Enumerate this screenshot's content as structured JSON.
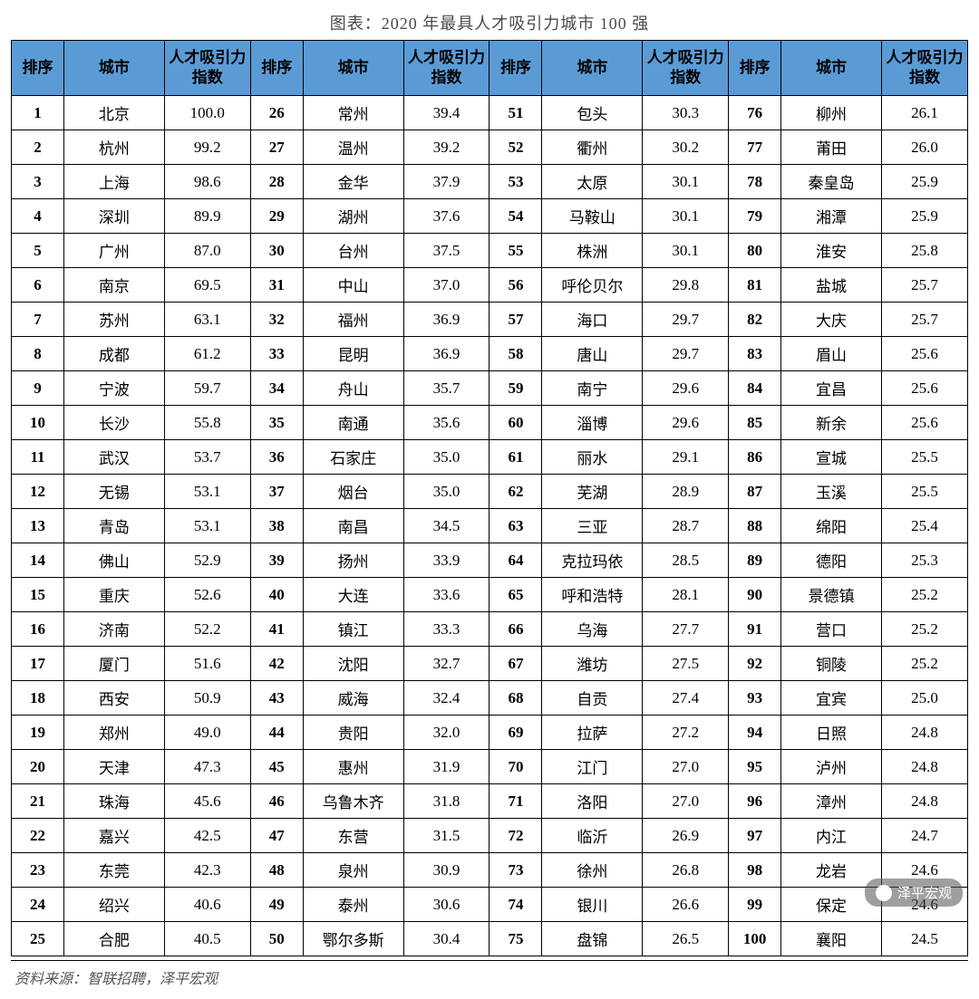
{
  "title": "图表：2020 年最具人才吸引力城市 100 强",
  "source": "资料来源：智联招聘，泽平宏观",
  "watermark": "泽平宏观",
  "header_bg": "#5b9bd5",
  "headers": {
    "rank": "排序",
    "city": "城市",
    "index": "人才吸引力指数"
  },
  "blocks": 4,
  "rows_per_block": 25,
  "data": [
    {
      "r": 1,
      "c": "北京",
      "v": "100.0"
    },
    {
      "r": 2,
      "c": "杭州",
      "v": "99.2"
    },
    {
      "r": 3,
      "c": "上海",
      "v": "98.6"
    },
    {
      "r": 4,
      "c": "深圳",
      "v": "89.9"
    },
    {
      "r": 5,
      "c": "广州",
      "v": "87.0"
    },
    {
      "r": 6,
      "c": "南京",
      "v": "69.5"
    },
    {
      "r": 7,
      "c": "苏州",
      "v": "63.1"
    },
    {
      "r": 8,
      "c": "成都",
      "v": "61.2"
    },
    {
      "r": 9,
      "c": "宁波",
      "v": "59.7"
    },
    {
      "r": 10,
      "c": "长沙",
      "v": "55.8"
    },
    {
      "r": 11,
      "c": "武汉",
      "v": "53.7"
    },
    {
      "r": 12,
      "c": "无锡",
      "v": "53.1"
    },
    {
      "r": 13,
      "c": "青岛",
      "v": "53.1"
    },
    {
      "r": 14,
      "c": "佛山",
      "v": "52.9"
    },
    {
      "r": 15,
      "c": "重庆",
      "v": "52.6"
    },
    {
      "r": 16,
      "c": "济南",
      "v": "52.2"
    },
    {
      "r": 17,
      "c": "厦门",
      "v": "51.6"
    },
    {
      "r": 18,
      "c": "西安",
      "v": "50.9"
    },
    {
      "r": 19,
      "c": "郑州",
      "v": "49.0"
    },
    {
      "r": 20,
      "c": "天津",
      "v": "47.3"
    },
    {
      "r": 21,
      "c": "珠海",
      "v": "45.6"
    },
    {
      "r": 22,
      "c": "嘉兴",
      "v": "42.5"
    },
    {
      "r": 23,
      "c": "东莞",
      "v": "42.3"
    },
    {
      "r": 24,
      "c": "绍兴",
      "v": "40.6"
    },
    {
      "r": 25,
      "c": "合肥",
      "v": "40.5"
    },
    {
      "r": 26,
      "c": "常州",
      "v": "39.4"
    },
    {
      "r": 27,
      "c": "温州",
      "v": "39.2"
    },
    {
      "r": 28,
      "c": "金华",
      "v": "37.9"
    },
    {
      "r": 29,
      "c": "湖州",
      "v": "37.6"
    },
    {
      "r": 30,
      "c": "台州",
      "v": "37.5"
    },
    {
      "r": 31,
      "c": "中山",
      "v": "37.0"
    },
    {
      "r": 32,
      "c": "福州",
      "v": "36.9"
    },
    {
      "r": 33,
      "c": "昆明",
      "v": "36.9"
    },
    {
      "r": 34,
      "c": "舟山",
      "v": "35.7"
    },
    {
      "r": 35,
      "c": "南通",
      "v": "35.6"
    },
    {
      "r": 36,
      "c": "石家庄",
      "v": "35.0"
    },
    {
      "r": 37,
      "c": "烟台",
      "v": "35.0"
    },
    {
      "r": 38,
      "c": "南昌",
      "v": "34.5"
    },
    {
      "r": 39,
      "c": "扬州",
      "v": "33.9"
    },
    {
      "r": 40,
      "c": "大连",
      "v": "33.6"
    },
    {
      "r": 41,
      "c": "镇江",
      "v": "33.3"
    },
    {
      "r": 42,
      "c": "沈阳",
      "v": "32.7"
    },
    {
      "r": 43,
      "c": "威海",
      "v": "32.4"
    },
    {
      "r": 44,
      "c": "贵阳",
      "v": "32.0"
    },
    {
      "r": 45,
      "c": "惠州",
      "v": "31.9"
    },
    {
      "r": 46,
      "c": "乌鲁木齐",
      "v": "31.8"
    },
    {
      "r": 47,
      "c": "东营",
      "v": "31.5"
    },
    {
      "r": 48,
      "c": "泉州",
      "v": "30.9"
    },
    {
      "r": 49,
      "c": "泰州",
      "v": "30.6"
    },
    {
      "r": 50,
      "c": "鄂尔多斯",
      "v": "30.4"
    },
    {
      "r": 51,
      "c": "包头",
      "v": "30.3"
    },
    {
      "r": 52,
      "c": "衢州",
      "v": "30.2"
    },
    {
      "r": 53,
      "c": "太原",
      "v": "30.1"
    },
    {
      "r": 54,
      "c": "马鞍山",
      "v": "30.1"
    },
    {
      "r": 55,
      "c": "株洲",
      "v": "30.1"
    },
    {
      "r": 56,
      "c": "呼伦贝尔",
      "v": "29.8"
    },
    {
      "r": 57,
      "c": "海口",
      "v": "29.7"
    },
    {
      "r": 58,
      "c": "唐山",
      "v": "29.7"
    },
    {
      "r": 59,
      "c": "南宁",
      "v": "29.6"
    },
    {
      "r": 60,
      "c": "淄博",
      "v": "29.6"
    },
    {
      "r": 61,
      "c": "丽水",
      "v": "29.1"
    },
    {
      "r": 62,
      "c": "芜湖",
      "v": "28.9"
    },
    {
      "r": 63,
      "c": "三亚",
      "v": "28.7"
    },
    {
      "r": 64,
      "c": "克拉玛依",
      "v": "28.5"
    },
    {
      "r": 65,
      "c": "呼和浩特",
      "v": "28.1"
    },
    {
      "r": 66,
      "c": "乌海",
      "v": "27.7"
    },
    {
      "r": 67,
      "c": "潍坊",
      "v": "27.5"
    },
    {
      "r": 68,
      "c": "自贡",
      "v": "27.4"
    },
    {
      "r": 69,
      "c": "拉萨",
      "v": "27.2"
    },
    {
      "r": 70,
      "c": "江门",
      "v": "27.0"
    },
    {
      "r": 71,
      "c": "洛阳",
      "v": "27.0"
    },
    {
      "r": 72,
      "c": "临沂",
      "v": "26.9"
    },
    {
      "r": 73,
      "c": "徐州",
      "v": "26.8"
    },
    {
      "r": 74,
      "c": "银川",
      "v": "26.6"
    },
    {
      "r": 75,
      "c": "盘锦",
      "v": "26.5"
    },
    {
      "r": 76,
      "c": "柳州",
      "v": "26.1"
    },
    {
      "r": 77,
      "c": "莆田",
      "v": "26.0"
    },
    {
      "r": 78,
      "c": "秦皇岛",
      "v": "25.9"
    },
    {
      "r": 79,
      "c": "湘潭",
      "v": "25.9"
    },
    {
      "r": 80,
      "c": "淮安",
      "v": "25.8"
    },
    {
      "r": 81,
      "c": "盐城",
      "v": "25.7"
    },
    {
      "r": 82,
      "c": "大庆",
      "v": "25.7"
    },
    {
      "r": 83,
      "c": "眉山",
      "v": "25.6"
    },
    {
      "r": 84,
      "c": "宜昌",
      "v": "25.6"
    },
    {
      "r": 85,
      "c": "新余",
      "v": "25.6"
    },
    {
      "r": 86,
      "c": "宣城",
      "v": "25.5"
    },
    {
      "r": 87,
      "c": "玉溪",
      "v": "25.5"
    },
    {
      "r": 88,
      "c": "绵阳",
      "v": "25.4"
    },
    {
      "r": 89,
      "c": "德阳",
      "v": "25.3"
    },
    {
      "r": 90,
      "c": "景德镇",
      "v": "25.2"
    },
    {
      "r": 91,
      "c": "营口",
      "v": "25.2"
    },
    {
      "r": 92,
      "c": "铜陵",
      "v": "25.2"
    },
    {
      "r": 93,
      "c": "宜宾",
      "v": "25.0"
    },
    {
      "r": 94,
      "c": "日照",
      "v": "24.8"
    },
    {
      "r": 95,
      "c": "泸州",
      "v": "24.8"
    },
    {
      "r": 96,
      "c": "漳州",
      "v": "24.8"
    },
    {
      "r": 97,
      "c": "内江",
      "v": "24.7"
    },
    {
      "r": 98,
      "c": "龙岩",
      "v": "24.6"
    },
    {
      "r": 99,
      "c": "保定",
      "v": "24.6"
    },
    {
      "r": 100,
      "c": "襄阳",
      "v": "24.5"
    }
  ]
}
